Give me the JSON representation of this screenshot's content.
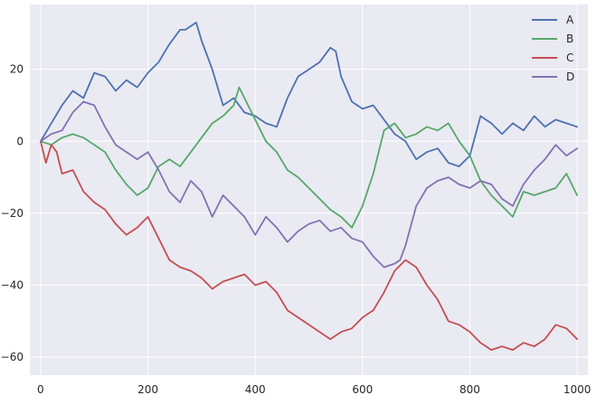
{
  "chart_data": {
    "type": "line",
    "title": "",
    "xlabel": "",
    "ylabel": "",
    "xlim": [
      -20,
      1020
    ],
    "ylim": [
      -65,
      38
    ],
    "xticks": [
      0,
      200,
      400,
      600,
      800,
      1000
    ],
    "yticks": [
      -60,
      -40,
      -20,
      0,
      20
    ],
    "grid": true,
    "legend_position": "top-right",
    "colors": {
      "plot_background": "#eaeaf2",
      "grid": "#ffffff"
    },
    "series": [
      {
        "name": "A",
        "color": "#4c72b0",
        "x": [
          0,
          20,
          40,
          60,
          80,
          100,
          120,
          140,
          160,
          180,
          200,
          220,
          240,
          260,
          270,
          290,
          300,
          320,
          340,
          360,
          380,
          400,
          420,
          440,
          460,
          480,
          500,
          520,
          540,
          550,
          560,
          580,
          600,
          620,
          640,
          660,
          680,
          700,
          720,
          740,
          760,
          780,
          800,
          820,
          840,
          860,
          880,
          900,
          920,
          940,
          960,
          980,
          1000
        ],
        "y": [
          0,
          5,
          10,
          14,
          12,
          19,
          18,
          14,
          17,
          15,
          19,
          22,
          27,
          31,
          31,
          33,
          28,
          20,
          10,
          12,
          8,
          7,
          5,
          4,
          12,
          18,
          20,
          22,
          26,
          25,
          18,
          11,
          9,
          10,
          6,
          2,
          0,
          -5,
          -3,
          -2,
          -6,
          -7,
          -4,
          7,
          5,
          2,
          5,
          3,
          7,
          4,
          6,
          5,
          4
        ]
      },
      {
        "name": "B",
        "color": "#55a868",
        "x": [
          0,
          20,
          40,
          60,
          80,
          100,
          120,
          140,
          160,
          180,
          200,
          220,
          240,
          260,
          280,
          300,
          320,
          340,
          360,
          370,
          380,
          400,
          420,
          440,
          460,
          480,
          500,
          520,
          540,
          560,
          580,
          600,
          620,
          640,
          660,
          680,
          700,
          720,
          740,
          760,
          780,
          800,
          820,
          840,
          860,
          880,
          900,
          920,
          940,
          960,
          980,
          1000
        ],
        "y": [
          0,
          -1,
          1,
          2,
          1,
          -1,
          -3,
          -8,
          -12,
          -15,
          -13,
          -7,
          -5,
          -7,
          -3,
          1,
          5,
          7,
          10,
          15,
          12,
          6,
          0,
          -3,
          -8,
          -10,
          -13,
          -16,
          -19,
          -21,
          -24,
          -18,
          -9,
          3,
          5,
          1,
          2,
          4,
          3,
          5,
          0,
          -4,
          -11,
          -15,
          -18,
          -21,
          -14,
          -15,
          -14,
          -13,
          -9,
          -15
        ]
      },
      {
        "name": "C",
        "color": "#c44e52",
        "x": [
          0,
          10,
          20,
          30,
          40,
          60,
          80,
          100,
          120,
          140,
          160,
          180,
          200,
          220,
          240,
          260,
          280,
          300,
          320,
          340,
          360,
          380,
          400,
          420,
          440,
          460,
          480,
          500,
          520,
          540,
          560,
          580,
          600,
          620,
          640,
          660,
          680,
          700,
          720,
          740,
          760,
          780,
          800,
          820,
          840,
          860,
          880,
          900,
          920,
          940,
          960,
          980,
          1000
        ],
        "y": [
          0,
          -6,
          -1,
          -3,
          -9,
          -8,
          -14,
          -17,
          -19,
          -23,
          -26,
          -24,
          -21,
          -27,
          -33,
          -35,
          -36,
          -38,
          -41,
          -39,
          -38,
          -37,
          -40,
          -39,
          -42,
          -47,
          -49,
          -51,
          -53,
          -55,
          -53,
          -52,
          -49,
          -47,
          -42,
          -36,
          -33,
          -35,
          -40,
          -44,
          -50,
          -51,
          -53,
          -56,
          -58,
          -57,
          -58,
          -56,
          -57,
          -55,
          -51,
          -52,
          -55
        ]
      },
      {
        "name": "D",
        "color": "#8172b2",
        "x": [
          0,
          20,
          40,
          60,
          80,
          100,
          120,
          140,
          160,
          180,
          200,
          220,
          240,
          260,
          280,
          300,
          320,
          340,
          360,
          380,
          400,
          420,
          440,
          460,
          480,
          500,
          520,
          540,
          560,
          580,
          600,
          620,
          640,
          660,
          670,
          680,
          700,
          720,
          740,
          760,
          780,
          800,
          820,
          840,
          860,
          880,
          900,
          920,
          940,
          960,
          980,
          1000
        ],
        "y": [
          0,
          2,
          3,
          8,
          11,
          10,
          4,
          -1,
          -3,
          -5,
          -3,
          -8,
          -14,
          -17,
          -11,
          -14,
          -21,
          -15,
          -18,
          -21,
          -26,
          -21,
          -24,
          -28,
          -25,
          -23,
          -22,
          -25,
          -24,
          -27,
          -28,
          -32,
          -35,
          -34,
          -33,
          -29,
          -18,
          -13,
          -11,
          -10,
          -12,
          -13,
          -11,
          -12,
          -16,
          -18,
          -12,
          -8,
          -5,
          -1,
          -4,
          -2
        ]
      }
    ]
  }
}
